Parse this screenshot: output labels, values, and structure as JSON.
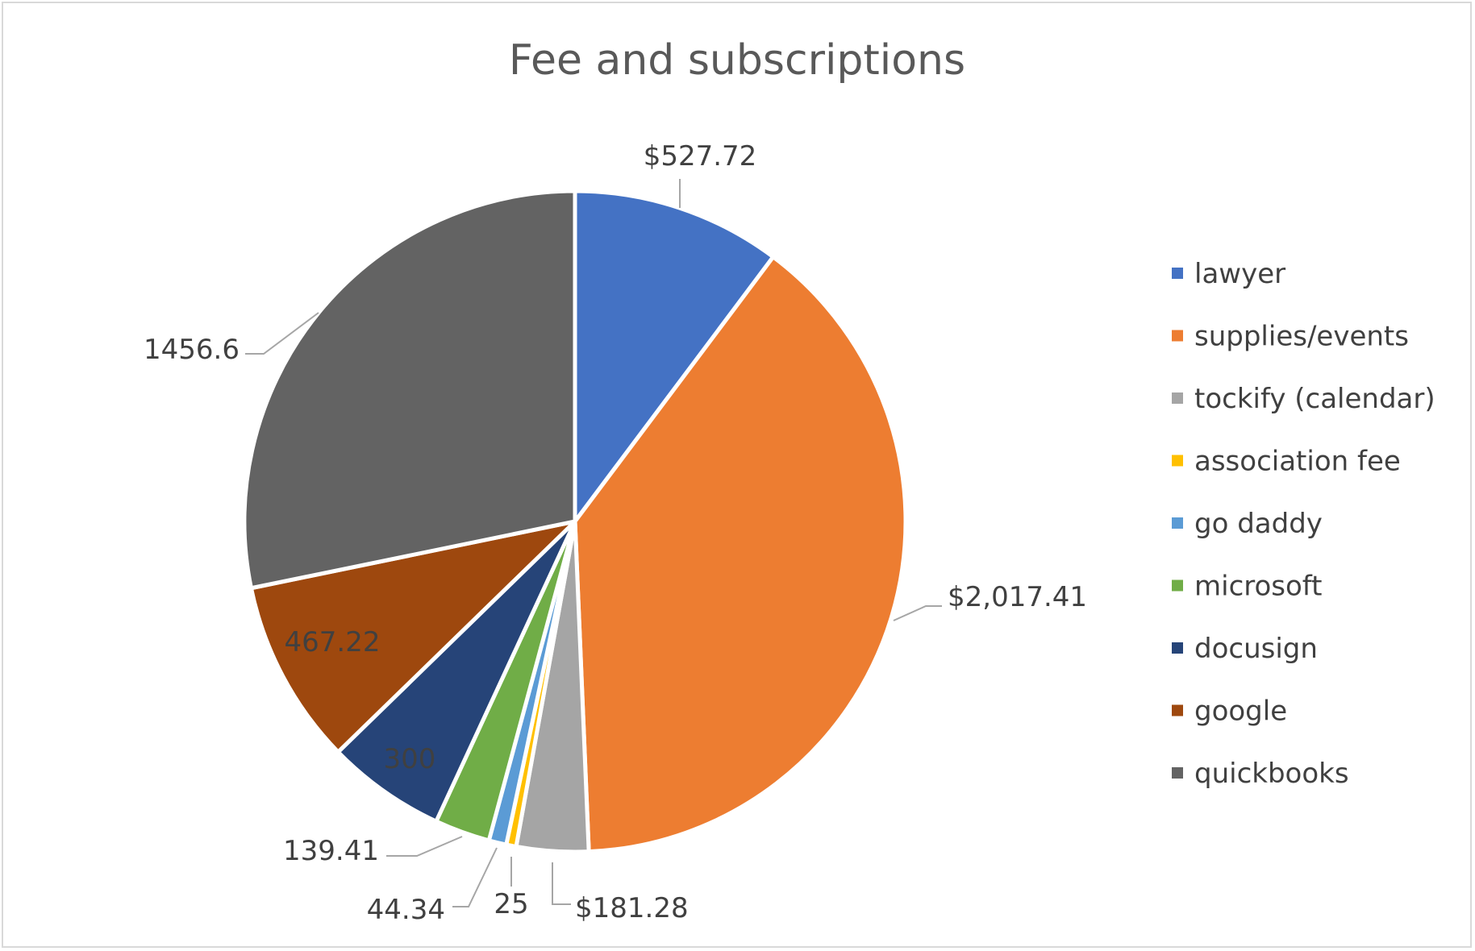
{
  "chart_data": {
    "type": "pie",
    "title": "Fee and subscriptions",
    "legend_position": "right",
    "categories": [
      "lawyer",
      "supplies/events",
      "tockify (calendar)",
      "association fee",
      "go daddy",
      "microsoft",
      "docusign",
      "google",
      "quickbooks"
    ],
    "values": [
      527.72,
      2017.41,
      181.28,
      25,
      44.34,
      139.41,
      300,
      467.22,
      1456.6
    ],
    "data_labels": [
      "$527.72",
      "$2,017.41",
      "$181.28",
      "25",
      "44.34",
      "139.41",
      "300",
      "467.22",
      "1456.6"
    ],
    "colors": [
      "#4472C4",
      "#ED7D31",
      "#A5A5A5",
      "#FFC000",
      "#5B9BD5",
      "#70AD47",
      "#264478",
      "#9E480E",
      "#636363"
    ]
  }
}
